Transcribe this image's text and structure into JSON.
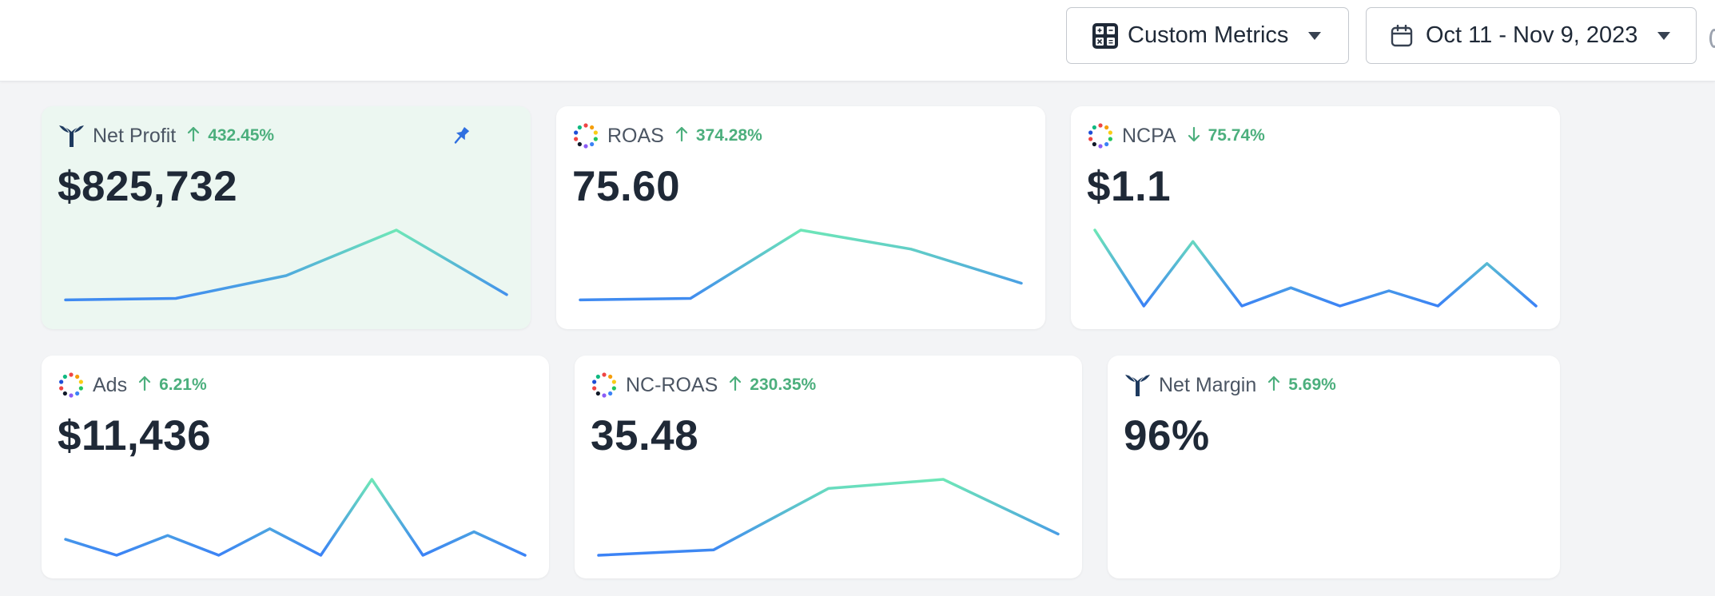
{
  "toolbar": {
    "metrics_label": "Custom Metrics",
    "date_label": "Oct 11 - Nov 9, 2023"
  },
  "colors": {
    "up": "#4caf7d",
    "down": "#4caf7d",
    "spark_low": "#3b82f6",
    "spark_high": "#6ee7b7",
    "pin": "#2f6fe0"
  },
  "cards": [
    {
      "name": "Net Profit",
      "icon": "whale-logo-icon",
      "trend": "up",
      "change": "432.45%",
      "value": "$825,732",
      "pinned": true,
      "spark": [
        0.08,
        0.1,
        0.4,
        1.0,
        0.15
      ]
    },
    {
      "name": "ROAS",
      "icon": "dots-circle-icon",
      "trend": "up",
      "change": "374.28%",
      "value": "75.60",
      "pinned": false,
      "spark": [
        0.08,
        0.1,
        1.0,
        0.75,
        0.3
      ]
    },
    {
      "name": "NCPA",
      "icon": "dots-circle-icon",
      "trend": "down",
      "change": "75.74%",
      "value": "$1.1",
      "pinned": false,
      "spark": [
        1.0,
        0.0,
        0.85,
        0.0,
        0.24,
        0.0,
        0.2,
        0.0,
        0.56,
        0.0
      ]
    },
    {
      "name": "Ads",
      "icon": "dots-circle-icon",
      "trend": "up",
      "change": "6.21%",
      "value": "$11,436",
      "pinned": false,
      "spark": [
        0.21,
        0.0,
        0.26,
        0.0,
        0.35,
        0.0,
        1.0,
        0.0,
        0.31,
        0.0
      ]
    },
    {
      "name": "NC-ROAS",
      "icon": "dots-circle-icon",
      "trend": "up",
      "change": "230.35%",
      "value": "35.48",
      "pinned": false,
      "spark": [
        0.0,
        0.07,
        0.88,
        1.0,
        0.28
      ]
    },
    {
      "name": "Net Margin",
      "icon": "whale-logo-icon",
      "trend": "up",
      "change": "5.69%",
      "value": "96%",
      "pinned": false,
      "spark": []
    }
  ]
}
